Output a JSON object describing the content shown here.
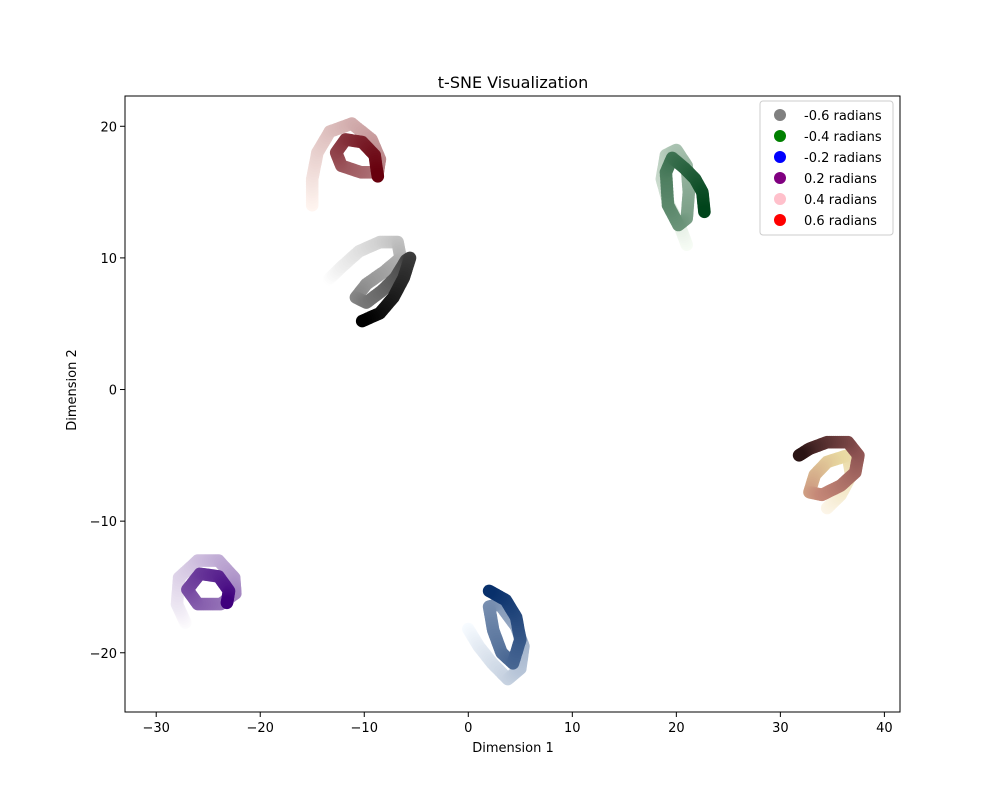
{
  "chart_data": {
    "type": "scatter",
    "title": "t-SNE Visualization",
    "xlabel": "Dimension 1",
    "ylabel": "Dimension 2",
    "xlim": [
      -33,
      41.5
    ],
    "ylim": [
      -24.5,
      22.3
    ],
    "xticks": [
      -30,
      -20,
      -10,
      0,
      10,
      20,
      30,
      40
    ],
    "yticks": [
      -20,
      -10,
      0,
      10,
      20
    ],
    "xtick_labels": [
      "−30",
      "−20",
      "−10",
      "0",
      "10",
      "20",
      "30",
      "40"
    ],
    "ytick_labels": [
      "−20",
      "−10",
      "0",
      "10",
      "20"
    ],
    "grid": false,
    "legend_position": "top-right",
    "series": [
      {
        "name": "-0.6 radians",
        "legend_color": "#808080",
        "colormap": [
          "#ffffff",
          "#000000"
        ],
        "points": [
          [
            -13.5,
            8.3
          ],
          [
            -12.2,
            9.3
          ],
          [
            -10.5,
            10.5
          ],
          [
            -8.5,
            11.2
          ],
          [
            -6.8,
            11.2
          ],
          [
            -6.5,
            10.0
          ],
          [
            -8.0,
            9.0
          ],
          [
            -9.8,
            8.0
          ],
          [
            -10.8,
            7.0
          ],
          [
            -9.8,
            6.6
          ],
          [
            -8.3,
            7.5
          ],
          [
            -7.0,
            8.5
          ],
          [
            -6.0,
            9.8
          ],
          [
            -5.6,
            10.0
          ],
          [
            -6.2,
            8.5
          ],
          [
            -7.2,
            7.0
          ],
          [
            -8.5,
            5.8
          ],
          [
            -10.2,
            5.2
          ]
        ]
      },
      {
        "name": "-0.4 radians",
        "legend_color": "#008000",
        "colormap": [
          "#f7fcf5",
          "#00441b"
        ],
        "points": [
          [
            21.0,
            11.0
          ],
          [
            20.3,
            12.5
          ],
          [
            19.3,
            14.0
          ],
          [
            18.6,
            16.0
          ],
          [
            19.0,
            17.8
          ],
          [
            20.0,
            18.2
          ],
          [
            21.0,
            17.0
          ],
          [
            21.2,
            15.0
          ],
          [
            21.0,
            13.0
          ],
          [
            20.2,
            12.5
          ],
          [
            19.2,
            14.0
          ],
          [
            19.0,
            16.5
          ],
          [
            19.6,
            17.6
          ],
          [
            20.8,
            16.8
          ],
          [
            21.8,
            16.0
          ],
          [
            22.5,
            15.0
          ],
          [
            22.7,
            13.5
          ]
        ]
      },
      {
        "name": "-0.2 radians",
        "legend_color": "#0000ff",
        "colormap": [
          "#f7fbff",
          "#08306b"
        ],
        "points": [
          [
            0.0,
            -18.2
          ],
          [
            1.0,
            -19.5
          ],
          [
            2.3,
            -20.8
          ],
          [
            3.8,
            -22.0
          ],
          [
            5.0,
            -21.2
          ],
          [
            5.3,
            -19.5
          ],
          [
            4.6,
            -18.0
          ],
          [
            3.0,
            -16.3
          ],
          [
            2.0,
            -16.5
          ],
          [
            2.4,
            -18.3
          ],
          [
            3.2,
            -20.0
          ],
          [
            4.3,
            -20.8
          ],
          [
            5.0,
            -19.0
          ],
          [
            4.6,
            -17.3
          ],
          [
            3.6,
            -16.0
          ],
          [
            2.0,
            -15.3
          ]
        ]
      },
      {
        "name": "0.2 radians",
        "legend_color": "#800080",
        "colormap": [
          "#fcfbfd",
          "#3f007d"
        ],
        "points": [
          [
            -27.2,
            -17.7
          ],
          [
            -28.0,
            -16.3
          ],
          [
            -27.8,
            -14.3
          ],
          [
            -26.0,
            -13.0
          ],
          [
            -24.0,
            -13.0
          ],
          [
            -22.5,
            -14.3
          ],
          [
            -22.4,
            -15.5
          ],
          [
            -23.8,
            -16.3
          ],
          [
            -26.0,
            -16.3
          ],
          [
            -27.0,
            -15.2
          ],
          [
            -25.8,
            -14.0
          ],
          [
            -24.0,
            -14.2
          ],
          [
            -23.0,
            -15.3
          ],
          [
            -23.2,
            -16.2
          ]
        ]
      },
      {
        "name": "0.4 radians",
        "legend_color": "#ffc0cb",
        "colormap": [
          "#fcf5e8",
          "#e8d8a0",
          "#c58878",
          "#8a5050",
          "#2a1414"
        ],
        "points": [
          [
            34.5,
            -9.0
          ],
          [
            35.8,
            -8.0
          ],
          [
            36.8,
            -6.5
          ],
          [
            36.5,
            -5.0
          ],
          [
            34.5,
            -5.5
          ],
          [
            33.3,
            -6.5
          ],
          [
            32.8,
            -7.8
          ],
          [
            34.0,
            -8.0
          ],
          [
            35.8,
            -7.3
          ],
          [
            37.2,
            -6.3
          ],
          [
            37.5,
            -5.0
          ],
          [
            36.5,
            -4.0
          ],
          [
            34.5,
            -4.0
          ],
          [
            32.8,
            -4.5
          ],
          [
            31.8,
            -5.0
          ]
        ]
      },
      {
        "name": "0.6 radians",
        "legend_color": "#ff0000",
        "colormap": [
          "#fff5f0",
          "#67000d"
        ],
        "points": [
          [
            -15.0,
            14.0
          ],
          [
            -15.0,
            16.0
          ],
          [
            -14.5,
            18.0
          ],
          [
            -13.3,
            19.6
          ],
          [
            -11.2,
            20.2
          ],
          [
            -9.3,
            19.0
          ],
          [
            -8.5,
            17.5
          ],
          [
            -8.7,
            16.5
          ],
          [
            -10.3,
            16.5
          ],
          [
            -12.2,
            17.0
          ],
          [
            -12.7,
            18.0
          ],
          [
            -11.8,
            19.0
          ],
          [
            -10.2,
            18.8
          ],
          [
            -9.0,
            17.8
          ],
          [
            -8.7,
            16.2
          ]
        ]
      }
    ]
  }
}
